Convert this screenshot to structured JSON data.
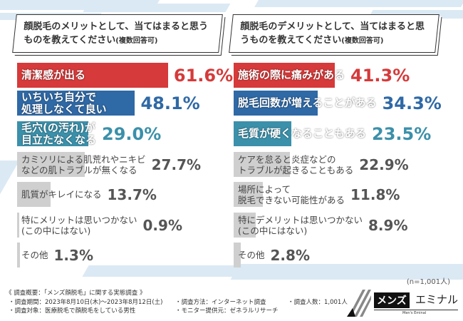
{
  "chart_data": [
    {
      "type": "bar",
      "orientation": "horizontal",
      "title": "顔脱毛のメリットとして、当てはまると思うものを教えてください",
      "title_note": "(複数回答可)",
      "categories": [
        "清潔感が出る",
        "いちいち自分で\n処理しなくて良い",
        "毛穴(の汚れ)が\n目立たなくなる",
        "カミソリによる肌荒れやニキビ\nなどの肌トラブルが無くなる",
        "肌質がキレイになる",
        "特にメリットは思いつかない\n(この中にはない)",
        "その他"
      ],
      "values": [
        61.6,
        48.1,
        29.0,
        27.7,
        13.7,
        0.9,
        1.3
      ],
      "labels": [
        "61.6%",
        "48.1%",
        "29.0%",
        "27.7%",
        "13.7%",
        "0.9%",
        "1.3%"
      ],
      "colors": [
        "#d63a3a",
        "#2f69a6",
        "#3b90aa",
        "#cfcfcf",
        "#cfcfcf",
        "#cfcfcf",
        "#cfcfcf"
      ]
    },
    {
      "type": "bar",
      "orientation": "horizontal",
      "title": "顔脱毛のデメリットとして、当てはまると思うものを教えてください",
      "title_note": "(複数回答可)",
      "categories": [
        "施術の際に痛みがある",
        "脱毛回数が増えることがある",
        "毛質が硬くなることもある",
        "ケアを怠ると炎症などの\nトラブルが起きることもある",
        "場所によって\n脱毛できない可能性がある",
        "特にデメリットは思いつかない\n(この中にはない)",
        "その他"
      ],
      "values": [
        41.3,
        34.3,
        23.5,
        22.9,
        11.8,
        8.9,
        2.8
      ],
      "labels": [
        "41.3%",
        "34.3%",
        "23.5%",
        "22.9%",
        "11.8%",
        "8.9%",
        "2.8%"
      ],
      "colors": [
        "#d63a3a",
        "#2f69a6",
        "#3b90aa",
        "#cfcfcf",
        "#cfcfcf",
        "#cfcfcf",
        "#cfcfcf"
      ]
    }
  ],
  "sample": "(n=1,001人)",
  "footer": {
    "heading": "《 調査概要：「メンズ顔脱毛」に関する実態調査 》",
    "period": "・調査期間：2023年8月10日(木)～2023年8月12日(土)",
    "target": "・調査対象：医療脱毛で顔脱毛をしている男性",
    "method": "・調査方法：インターネット調査",
    "provider": "・モニター提供元：ゼネラルリサーチ",
    "count": "・調査人数：1,001人"
  },
  "logo": {
    "text1": "メンズ",
    "text2": "エミナル",
    "sub": "Men's Eminal"
  }
}
